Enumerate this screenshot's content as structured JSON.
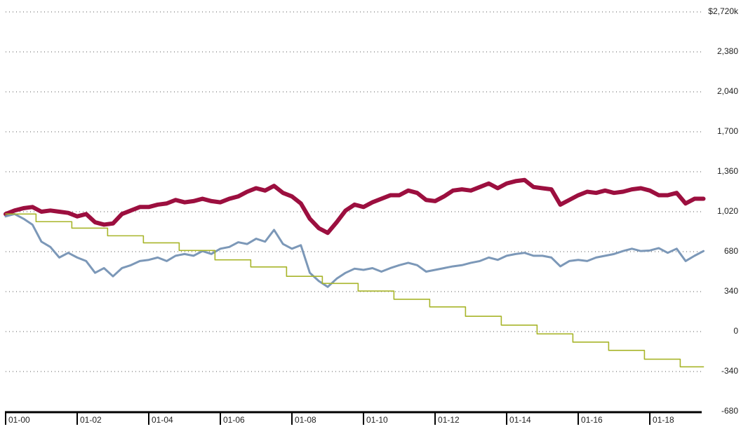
{
  "chart_data": {
    "type": "line",
    "x": [
      2000,
      2000.25,
      2000.5,
      2000.75,
      2001,
      2001.25,
      2001.5,
      2001.75,
      2002,
      2002.25,
      2002.5,
      2002.75,
      2003,
      2003.25,
      2003.5,
      2003.75,
      2004,
      2004.25,
      2004.5,
      2004.75,
      2005,
      2005.25,
      2005.5,
      2005.75,
      2006,
      2006.25,
      2006.5,
      2006.75,
      2007,
      2007.25,
      2007.5,
      2007.75,
      2008,
      2008.25,
      2008.5,
      2008.75,
      2009,
      2009.25,
      2009.5,
      2009.75,
      2010,
      2010.25,
      2010.5,
      2010.75,
      2011,
      2011.25,
      2011.5,
      2011.75,
      2012,
      2012.25,
      2012.5,
      2012.75,
      2013,
      2013.25,
      2013.5,
      2013.75,
      2014,
      2014.25,
      2014.5,
      2014.75,
      2015,
      2015.25,
      2015.5,
      2015.75,
      2016,
      2016.25,
      2016.5,
      2016.75,
      2017,
      2017.25,
      2017.5,
      2017.75,
      2018,
      2018.25,
      2018.5,
      2018.75,
      2019,
      2019.25,
      2019.5
    ],
    "series": [
      {
        "color": "#9c0f3f",
        "width": 6,
        "values": [
          1000,
          1030,
          1050,
          1060,
          1020,
          1030,
          1020,
          1010,
          980,
          1000,
          930,
          910,
          920,
          1000,
          1030,
          1060,
          1060,
          1080,
          1090,
          1120,
          1100,
          1110,
          1130,
          1110,
          1100,
          1130,
          1150,
          1190,
          1220,
          1200,
          1240,
          1180,
          1150,
          1090,
          960,
          880,
          840,
          930,
          1030,
          1080,
          1060,
          1100,
          1130,
          1160,
          1160,
          1200,
          1180,
          1120,
          1110,
          1150,
          1200,
          1210,
          1200,
          1230,
          1260,
          1220,
          1260,
          1280,
          1290,
          1230,
          1220,
          1210,
          1080,
          1120,
          1160,
          1190,
          1180,
          1200,
          1180,
          1190,
          1210,
          1220,
          1200,
          1160,
          1160,
          1180,
          1090,
          1130,
          1130
        ]
      },
      {
        "color": "#7c98b8",
        "width": 3,
        "values": [
          980,
          1000,
          960,
          910,
          765,
          720,
          630,
          670,
          630,
          600,
          500,
          540,
          470,
          540,
          565,
          600,
          610,
          630,
          600,
          645,
          660,
          645,
          685,
          660,
          705,
          720,
          760,
          745,
          790,
          765,
          865,
          745,
          705,
          735,
          500,
          430,
          380,
          450,
          500,
          535,
          525,
          540,
          510,
          540,
          565,
          585,
          565,
          510,
          525,
          540,
          555,
          565,
          585,
          600,
          630,
          610,
          645,
          660,
          670,
          645,
          645,
          630,
          555,
          600,
          610,
          600,
          630,
          645,
          660,
          685,
          705,
          685,
          690,
          710,
          670,
          705,
          600,
          645,
          685
        ]
      },
      {
        "color": "#a8b52a",
        "width": 1.6,
        "step": true,
        "x": [
          2000,
          2000.85,
          2001.85,
          2002.85,
          2003.85,
          2004.85,
          2005.85,
          2006.85,
          2007.85,
          2008.85,
          2009.85,
          2010.85,
          2011.85,
          2012.85,
          2013.85,
          2014.85,
          2015.85,
          2016.85,
          2017.85,
          2018.85,
          2019.5
        ],
        "values": [
          1000,
          935,
          880,
          815,
          755,
          690,
          610,
          550,
          470,
          410,
          345,
          275,
          210,
          130,
          55,
          -20,
          -90,
          -160,
          -235,
          -300,
          -300
        ]
      }
    ],
    "xlim": [
      2000,
      2019.45
    ],
    "xticks": [
      {
        "value": 2000,
        "label": "01-00"
      },
      {
        "value": 2002,
        "label": "01-02"
      },
      {
        "value": 2004,
        "label": "01-04"
      },
      {
        "value": 2006,
        "label": "01-06"
      },
      {
        "value": 2008,
        "label": "01-08"
      },
      {
        "value": 2010,
        "label": "01-10"
      },
      {
        "value": 2012,
        "label": "01-12"
      },
      {
        "value": 2014,
        "label": "01-14"
      },
      {
        "value": 2016,
        "label": "01-16"
      },
      {
        "value": 2018,
        "label": "01-18"
      }
    ],
    "ylim": [
      -680,
      2720
    ],
    "yticks": [
      {
        "value": 2720,
        "label": "$2,720k"
      },
      {
        "value": 2380,
        "label": "2,380"
      },
      {
        "value": 2040,
        "label": "2,040"
      },
      {
        "value": 1700,
        "label": "1,700"
      },
      {
        "value": 1360,
        "label": "1,360"
      },
      {
        "value": 1020,
        "label": "1,020"
      },
      680,
      340,
      0,
      -340,
      -680
    ],
    "grid": true
  }
}
